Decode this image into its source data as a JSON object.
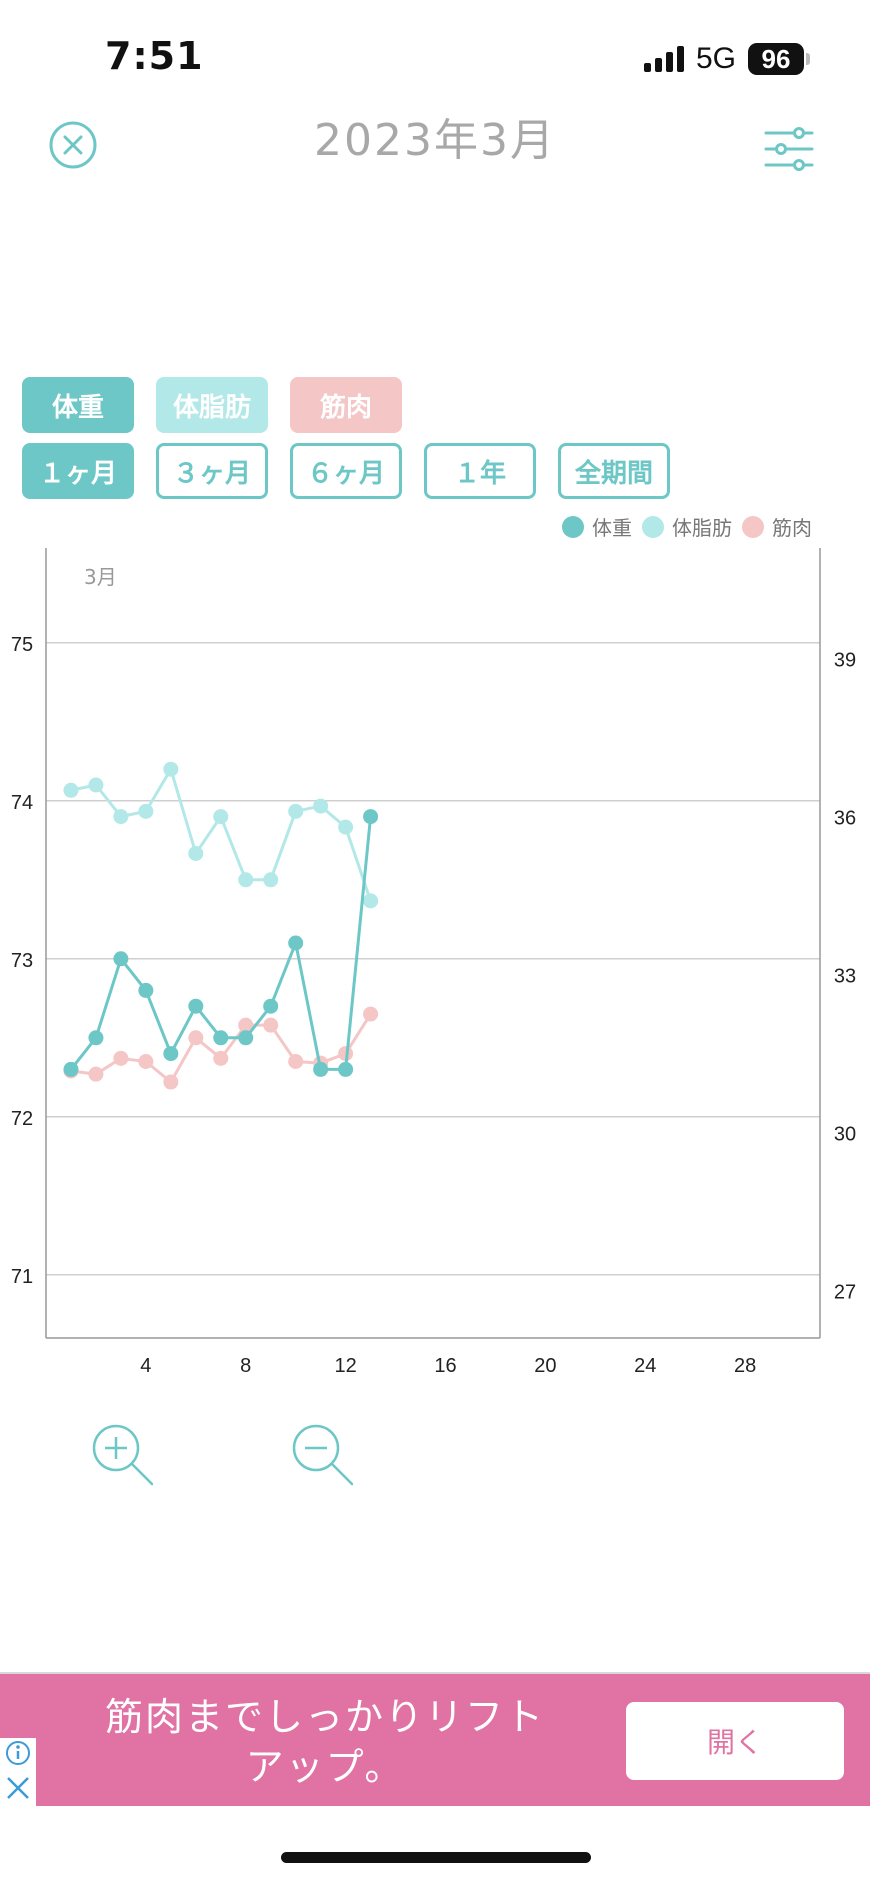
{
  "status_bar": {
    "time": "7:51",
    "network": "5G",
    "battery": "96"
  },
  "header": {
    "title": "2023年3月",
    "close_icon": "close-circle-icon",
    "filter_icon": "sliders-icon"
  },
  "metric_buttons": [
    {
      "label": "体重",
      "color": "#6cc7c6"
    },
    {
      "label": "体脂肪",
      "color": "#b2e8e7"
    },
    {
      "label": "筋肉",
      "color": "#f4c6c6"
    }
  ],
  "period_buttons": [
    {
      "label": "１ヶ月",
      "active": true
    },
    {
      "label": "３ヶ月",
      "active": false
    },
    {
      "label": "６ヶ月",
      "active": false
    },
    {
      "label": "１年",
      "active": false
    },
    {
      "label": "全期間",
      "active": false
    }
  ],
  "legend": [
    {
      "label": "体重",
      "color": "#6cc7c6"
    },
    {
      "label": "体脂肪",
      "color": "#b2e8e7"
    },
    {
      "label": "筋肉",
      "color": "#f4c6c6"
    }
  ],
  "chart_data": {
    "type": "line",
    "month_label": "3月",
    "xlim": [
      0,
      31
    ],
    "x_ticks": [
      4,
      8,
      12,
      16,
      20,
      24,
      28
    ],
    "y_left_lim": [
      70.6,
      75.6
    ],
    "y_left_ticks": [
      71,
      72,
      73,
      74,
      75
    ],
    "y_right_lim": [
      26.1,
      41.1
    ],
    "y_right_ticks": [
      27,
      30,
      33,
      36,
      39
    ],
    "grid": true,
    "legend_position": "top-right",
    "series": [
      {
        "name": "体重",
        "axis": "left",
        "color": "#6cc7c6",
        "x": [
          1,
          2,
          3,
          4,
          5,
          6,
          7,
          8,
          9,
          10,
          11,
          12,
          13
        ],
        "values": [
          72.3,
          72.5,
          73.0,
          72.8,
          72.4,
          72.7,
          72.5,
          72.5,
          72.7,
          73.1,
          72.3,
          72.3,
          73.9
        ]
      },
      {
        "name": "体脂肪",
        "axis": "right",
        "color": "#b2e8e7",
        "x": [
          1,
          2,
          3,
          4,
          5,
          6,
          7,
          8,
          9,
          10,
          11,
          12,
          13
        ],
        "values": [
          36.5,
          36.6,
          36.0,
          36.1,
          36.9,
          35.3,
          36.0,
          34.8,
          34.8,
          36.1,
          36.2,
          35.8,
          34.4
        ]
      },
      {
        "name": "筋肉",
        "axis": "left",
        "color": "#f4c6c6",
        "x": [
          1,
          2,
          3,
          4,
          5,
          6,
          7,
          8,
          9,
          10,
          11,
          12,
          13
        ],
        "values": [
          72.29,
          72.27,
          72.37,
          72.35,
          72.22,
          72.5,
          72.37,
          72.58,
          72.58,
          72.35,
          72.34,
          72.4,
          72.65
        ]
      }
    ]
  },
  "zoom": {
    "zoom_in_icon": "zoom-in-icon",
    "zoom_out_icon": "zoom-out-icon"
  },
  "ad": {
    "text_line1": "筋肉までしっかりリフト",
    "text_line2": "アップ。",
    "button_label": "開く",
    "info_icon": "info-icon",
    "close_icon": "close-x-icon"
  }
}
